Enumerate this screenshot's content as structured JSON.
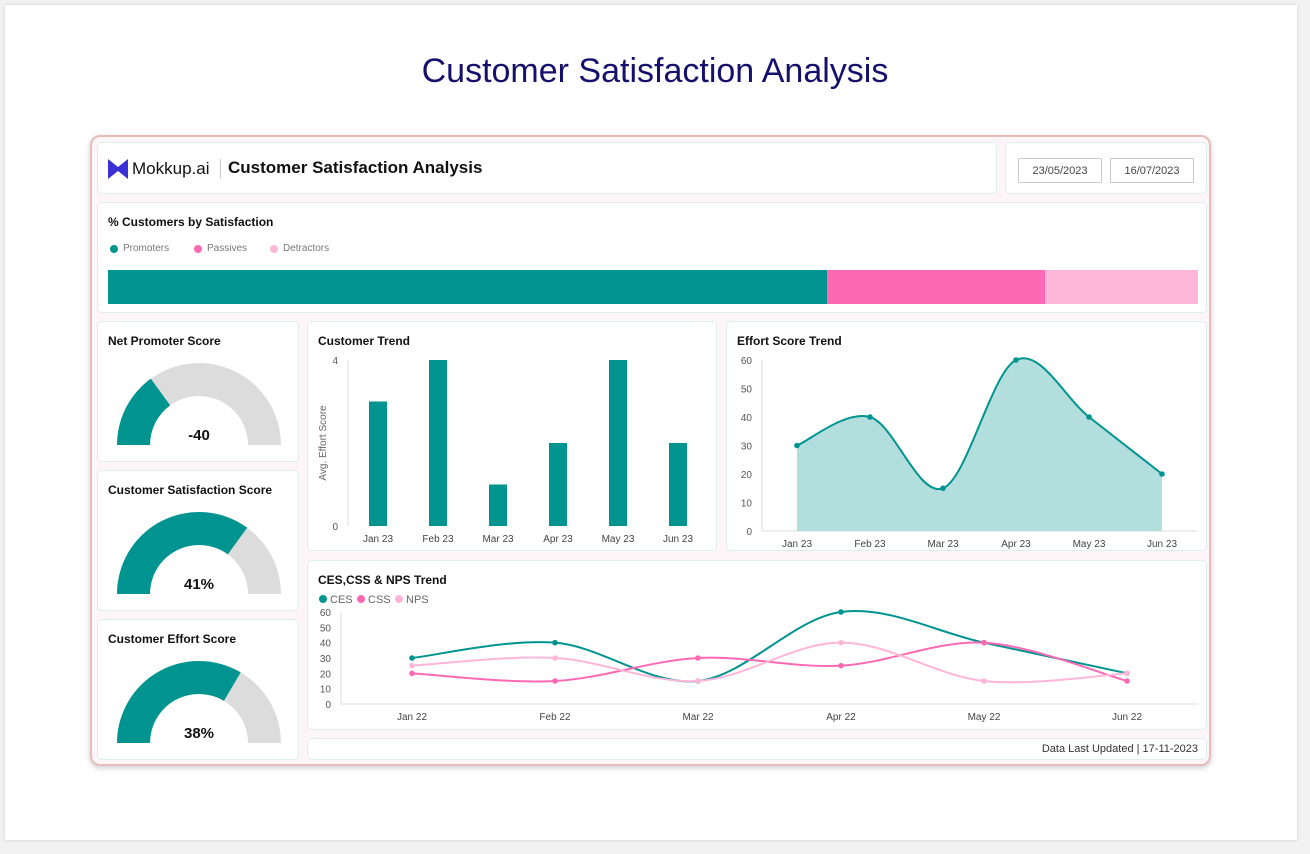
{
  "page_title": "Customer Satisfaction Analysis",
  "header": {
    "brand": "Mokkup.ai",
    "title": "Customer Satisfaction Analysis",
    "date_from": "23/05/2023",
    "date_to": "16/07/2023"
  },
  "colors": {
    "teal": "#009490",
    "pink": "#ff69b4",
    "light_pink": "#ffb6d9",
    "title": "#14106b"
  },
  "satisfaction": {
    "title": "% Customers by Satisfaction",
    "segments": [
      {
        "label": "Promoters",
        "percent": 66,
        "color": "#009490"
      },
      {
        "label": "Passives",
        "percent": 20,
        "color": "#ff69b4"
      },
      {
        "label": "Detractors",
        "percent": 14,
        "color": "#ffb6d9"
      }
    ]
  },
  "gauges": [
    {
      "title": "Net Promoter Score",
      "value": "-40",
      "fill": 0.3
    },
    {
      "title": "Customer Satisfaction Score",
      "value": "41%",
      "fill": 0.7
    },
    {
      "title": "Customer Effort Score",
      "value": "38%",
      "fill": 0.67
    }
  ],
  "footer": {
    "text": "Data Last Updated | 17-11-2023"
  },
  "chart_data": [
    {
      "type": "bar",
      "title": "Customer Trend",
      "ylabel": "Avg. Effort Score",
      "categories": [
        "Jan 23",
        "Feb 23",
        "Mar 23",
        "Apr 23",
        "May 23",
        "Jun 23"
      ],
      "values": [
        3,
        4,
        1,
        2,
        4,
        2
      ],
      "ylim": [
        0,
        4
      ],
      "yticks": [
        0,
        4
      ]
    },
    {
      "type": "area",
      "title": "Effort Score Trend",
      "categories": [
        "Jan 23",
        "Feb 23",
        "Mar 23",
        "Apr 23",
        "May 23",
        "Jun 23"
      ],
      "values": [
        30,
        40,
        15,
        60,
        40,
        20
      ],
      "ylim": [
        0,
        60
      ],
      "yticks": [
        0,
        10,
        20,
        30,
        40,
        50,
        60
      ]
    },
    {
      "type": "line",
      "title": "CES,CSS & NPS Trend",
      "categories": [
        "Jan 22",
        "Feb 22",
        "Mar 22",
        "Apr 22",
        "May 22",
        "Jun 22"
      ],
      "ylim": [
        0,
        60
      ],
      "yticks": [
        0,
        10,
        20,
        30,
        40,
        50,
        60
      ],
      "legend": "top-left",
      "series": [
        {
          "name": "CES",
          "color": "#009490",
          "values": [
            30,
            40,
            15,
            60,
            40,
            20
          ]
        },
        {
          "name": "CSS",
          "color": "#ff69b4",
          "values": [
            20,
            15,
            30,
            25,
            40,
            15
          ]
        },
        {
          "name": "NPS",
          "color": "#ffb6d9",
          "values": [
            25,
            30,
            15,
            40,
            15,
            20
          ]
        }
      ]
    }
  ]
}
